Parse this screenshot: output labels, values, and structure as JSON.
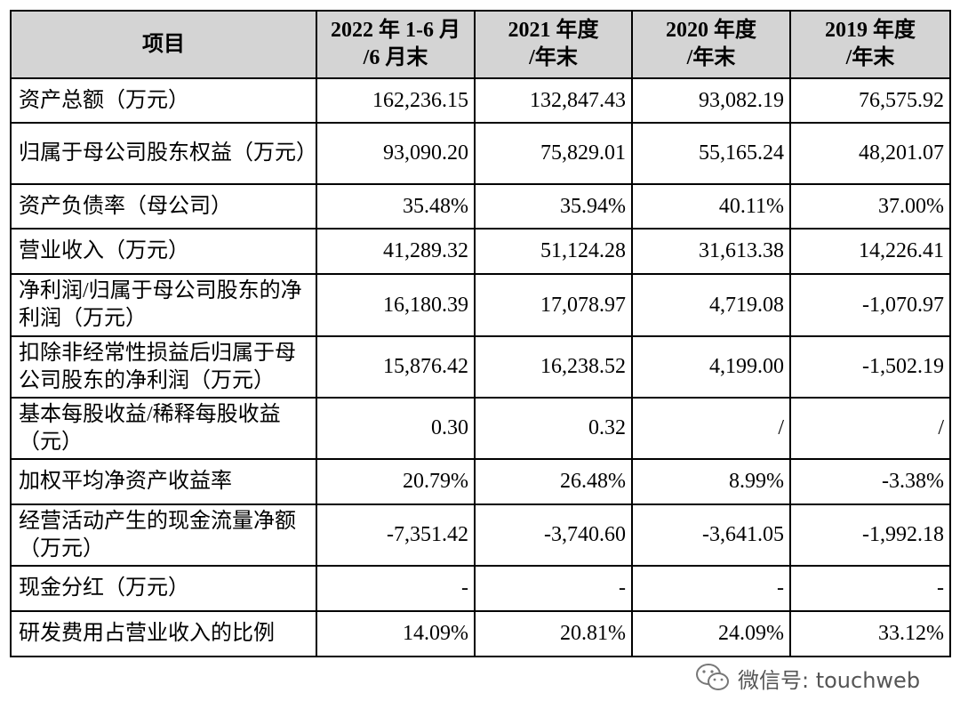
{
  "table": {
    "columns": [
      [
        "项目"
      ],
      [
        "2022 年 1-6 月",
        "/6 月末"
      ],
      [
        "2021 年度",
        "/年末"
      ],
      [
        "2020 年度",
        "/年末"
      ],
      [
        "2019 年度",
        "/年末"
      ]
    ],
    "rows": [
      {
        "label": "资产总额（万元）",
        "values": [
          "162,236.15",
          "132,847.43",
          "93,082.19",
          "76,575.92"
        ]
      },
      {
        "label": "归属于母公司股东权益（万元）",
        "values": [
          "93,090.20",
          "75,829.01",
          "55,165.24",
          "48,201.07"
        ]
      },
      {
        "label": "资产负债率（母公司）",
        "values": [
          "35.48%",
          "35.94%",
          "40.11%",
          "37.00%"
        ]
      },
      {
        "label": "营业收入（万元）",
        "values": [
          "41,289.32",
          "51,124.28",
          "31,613.38",
          "14,226.41"
        ]
      },
      {
        "label": "净利润/归属于母公司股东的净利润（万元）",
        "values": [
          "16,180.39",
          "17,078.97",
          "4,719.08",
          "-1,070.97"
        ]
      },
      {
        "label": "扣除非经常性损益后归属于母公司股东的净利润（万元）",
        "values": [
          "15,876.42",
          "16,238.52",
          "4,199.00",
          "-1,502.19"
        ]
      },
      {
        "label": "基本每股收益/稀释每股收益（元）",
        "values": [
          "0.30",
          "0.32",
          "/",
          "/"
        ]
      },
      {
        "label": "加权平均净资产收益率",
        "values": [
          "20.79%",
          "26.48%",
          "8.99%",
          "-3.38%"
        ]
      },
      {
        "label": "经营活动产生的现金流量净额（万元）",
        "values": [
          "-7,351.42",
          "-3,740.60",
          "-3,641.05",
          "-1,992.18"
        ]
      },
      {
        "label": "现金分红（万元）",
        "values": [
          "-",
          "-",
          "-",
          "-"
        ]
      },
      {
        "label": "研发费用占营业收入的比例",
        "values": [
          "14.09%",
          "20.81%",
          "24.09%",
          "33.12%"
        ]
      }
    ]
  },
  "watermark": "微信号: touchweb"
}
